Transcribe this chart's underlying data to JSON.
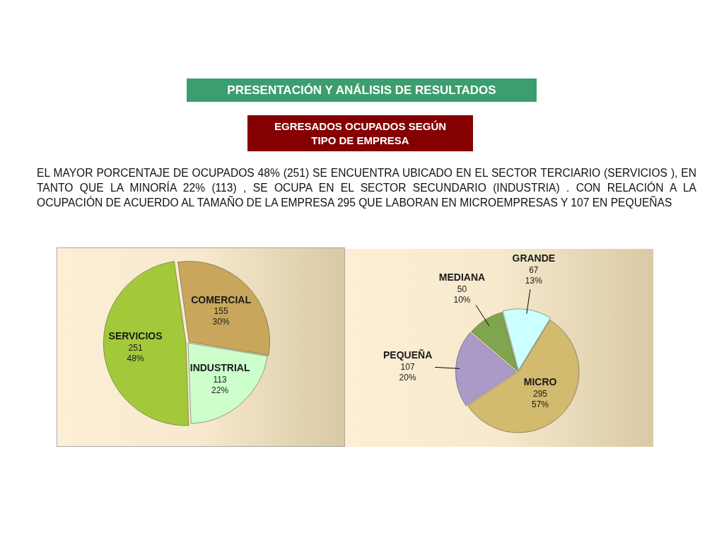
{
  "chart_data": [
    {
      "type": "other",
      "title": "PRESENTACIÓN Y ANÁLISIS DE RESULTADOS",
      "subtitle": "EGRESADOS OCUPADOS SEGÚN TIPO DE EMPRESA",
      "annotations": [
        "EL MAYOR PORCENTAJE DE OCUPADOS 48% (251) SE ENCUENTRA UBICADO EN EL SECTOR TERCIARIO (SERVICIOS ), EN TANTO QUE LA MINORÍA 22% (113) , SE OCUPA EN EL SECTOR SECUNDARIO (INDUSTRIA) . CON RELACIÓN A LA OCUPACIÓN DE ACUERDO AL TAMAÑO DE LA EMPRESA 295 QUE LABORAN EN MICROEMPRESAS Y 107 EN PEQUEÑAS"
      ]
    },
    {
      "type": "pie",
      "categories": [
        "COMERCIAL",
        "INDUSTRIAL",
        "SERVICIOS"
      ],
      "values": [
        155,
        113,
        251
      ],
      "colors": [
        "#c8a75c",
        "#ccffcc",
        "#a3c93a"
      ],
      "value_labels": [
        "155\n30%",
        "113\n22%",
        "251\n48%"
      ]
    },
    {
      "type": "pie",
      "categories": [
        "GRANDE",
        "MICRO",
        "PEQUEÑA",
        "MEDIANA"
      ],
      "values": [
        67,
        295,
        107,
        50
      ],
      "colors": [
        "#ccffff",
        "#d2ba6e",
        "#a99ac8",
        "#7fa64e"
      ],
      "value_labels": [
        "67\n13%",
        "295\n57%",
        "107\n20%",
        "50\n10%"
      ]
    }
  ]
}
